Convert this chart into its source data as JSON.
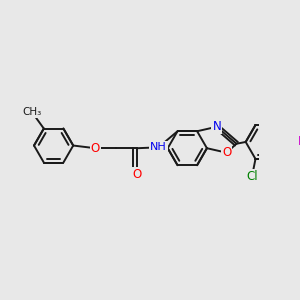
{
  "bg_color": "#e8e8e8",
  "bond_color": "#1a1a1a",
  "bond_width": 1.4,
  "atom_colors": {
    "O": "#ff0000",
    "N": "#0000ee",
    "Cl": "#008000",
    "F": "#cc00cc",
    "H": "#888888",
    "C": "#1a1a1a"
  },
  "font_size": 8.5
}
